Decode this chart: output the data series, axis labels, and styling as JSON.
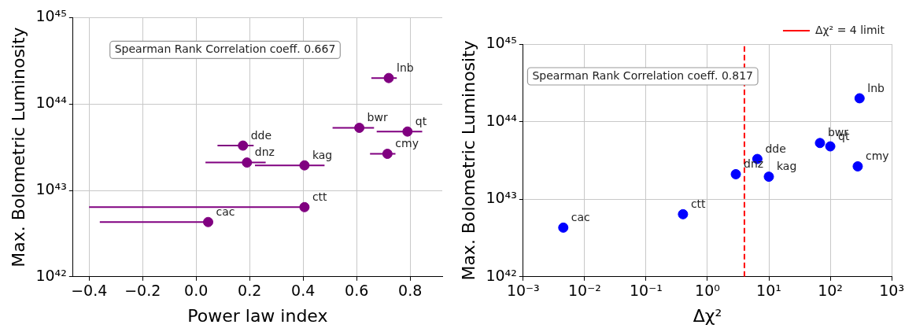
{
  "chart_data": [
    {
      "type": "scatter",
      "xlabel": "Power law index",
      "ylabel": "Max. Bolometric Luminosity",
      "log": "y",
      "grid": true,
      "marker": "circle",
      "x": [
        0.045,
        0.405,
        0.19,
        0.175,
        0.405,
        0.61,
        0.79,
        0.715,
        0.72
      ],
      "series": [
        {
          "color": "#800080",
          "values": [
            4.3e+42,
            6.4e+42,
            2.1e+43,
            3.3e+43,
            1.95e+43,
            5.3e+43,
            4.8e+43,
            2.65e+43,
            2e+44
          ],
          "xerrors": [
            [
              -0.36,
              0.045
            ],
            [
              -0.4,
              0.405
            ],
            [
              0.035,
              0.26
            ],
            [
              0.08,
              0.215
            ],
            [
              0.22,
              0.48
            ],
            [
              0.51,
              0.665
            ],
            [
              0.675,
              0.845
            ],
            [
              0.65,
              0.745
            ],
            [
              0.655,
              0.75
            ]
          ]
        }
      ],
      "xlim": [
        -0.46,
        0.92
      ],
      "xticks": [
        {
          "value": -0.4,
          "label": "−0.4"
        },
        {
          "value": -0.2,
          "label": "−0.2"
        },
        {
          "value": 0,
          "label": "0.0"
        },
        {
          "value": 0.2,
          "label": "0.2"
        },
        {
          "value": 0.4,
          "label": "0.4"
        },
        {
          "value": 0.6,
          "label": "0.6"
        },
        {
          "value": 0.8,
          "label": "0.8"
        }
      ],
      "ylim": [
        1e+42,
        1e+45
      ],
      "yticks": [
        {
          "value": 1e+42,
          "label": "10⁴²"
        },
        {
          "value": 1e+43,
          "label": "10⁴³"
        },
        {
          "value": 1e+44,
          "label": "10⁴⁴"
        },
        {
          "value": 1e+45,
          "label": "10⁴⁵"
        }
      ],
      "annotations": [
        "Spearman Rank Correlation coeff. 0.667",
        {
          "text": "cac",
          "x": 0.045,
          "y": 4.3e+42
        },
        {
          "text": "ctt",
          "x": 0.405,
          "y": 6.4e+42
        },
        {
          "text": "dnz",
          "x": 0.19,
          "y": 2.1e+43
        },
        {
          "text": "dde",
          "x": 0.175,
          "y": 3.3e+43
        },
        {
          "text": "kag",
          "x": 0.405,
          "y": 1.95e+43
        },
        {
          "text": "bwr",
          "x": 0.61,
          "y": 5.3e+43
        },
        {
          "text": "qt",
          "x": 0.79,
          "y": 4.8e+43
        },
        {
          "text": "cmy",
          "x": 0.715,
          "y": 2.65e+43
        },
        {
          "text": "lnb",
          "x": 0.72,
          "y": 2e+44
        }
      ]
    },
    {
      "type": "scatter",
      "xlabel": "Δχ²",
      "ylabel": "Max. Bolometric Luminosity",
      "log": "xy",
      "grid": true,
      "marker": "circle",
      "legend": "top right",
      "x": [
        0.0045,
        0.4,
        2.9,
        6.5,
        10,
        68,
        100,
        280,
        300
      ],
      "series": [
        {
          "color": "#0000ff",
          "values": [
            4.3e+42,
            6.4e+42,
            2.1e+43,
            3.3e+43,
            1.95e+43,
            5.3e+43,
            4.8e+43,
            2.65e+43,
            2e+44
          ]
        }
      ],
      "xlim": [
        0.001,
        1000
      ],
      "xticks": [
        {
          "value": 0.001,
          "label": "10⁻³"
        },
        {
          "value": 0.01,
          "label": "10⁻²"
        },
        {
          "value": 0.1,
          "label": "10⁻¹"
        },
        {
          "value": 1,
          "label": "10⁰"
        },
        {
          "value": 10,
          "label": "10¹"
        },
        {
          "value": 100,
          "label": "10²"
        },
        {
          "value": 1000,
          "label": "10³"
        }
      ],
      "ylim": [
        1e+42,
        1e+45
      ],
      "yticks": [
        {
          "value": 1e+42,
          "label": "10⁴²"
        },
        {
          "value": 1e+43,
          "label": "10⁴³"
        },
        {
          "value": 1e+44,
          "label": "10⁴⁴"
        },
        {
          "value": 1e+45,
          "label": "10⁴⁵"
        }
      ],
      "ref_lines": [
        {
          "axis": "x",
          "value": 4,
          "label": "Δχ² = 4 limit",
          "color": "#ff0000",
          "line_style": "dashed"
        }
      ],
      "annotations": [
        "Spearman Rank Correlation coeff. 0.817",
        {
          "text": "cac",
          "x": 0.0045,
          "y": 4.3e+42
        },
        {
          "text": "ctt",
          "x": 0.4,
          "y": 6.4e+42
        },
        {
          "text": "dnz",
          "x": 2.9,
          "y": 2.1e+43
        },
        {
          "text": "dde",
          "x": 6.5,
          "y": 3.3e+43
        },
        {
          "text": "kag",
          "x": 10,
          "y": 1.95e+43
        },
        {
          "text": "bwr",
          "x": 68,
          "y": 5.3e+43
        },
        {
          "text": "qt",
          "x": 100,
          "y": 4.8e+43
        },
        {
          "text": "cmy",
          "x": 280,
          "y": 2.65e+43
        },
        {
          "text": "lnb",
          "x": 300,
          "y": 2e+44
        }
      ]
    }
  ]
}
